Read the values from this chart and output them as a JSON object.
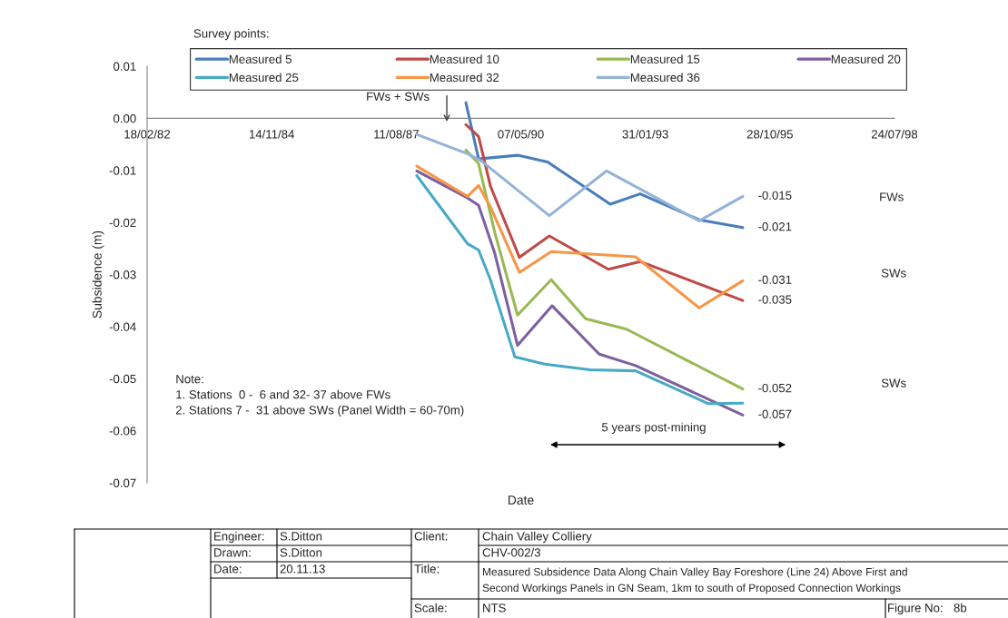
{
  "chart_data": {
    "type": "line",
    "title": "Measured Subsidence Data Along Chain Valley Bay Foreshore (Line 24) Above First and\nSecond Workings Panels in GN Seam, 1km to south of Proposed Connection Workings",
    "xlabel": "Date",
    "ylabel": "Subsidence (m)",
    "legend_title": "Survey points:",
    "xlim": [
      "1982-02-18",
      "1998-07-24"
    ],
    "xticks": [
      {
        "value": "1982-02-18",
        "label": "18/02/82"
      },
      {
        "value": "1984-11-14",
        "label": "14/11/84"
      },
      {
        "value": "1987-08-11",
        "label": "11/08/87"
      },
      {
        "value": "1990-05-07",
        "label": "07/05/90"
      },
      {
        "value": "1993-01-31",
        "label": "31/01/93"
      },
      {
        "value": "1995-10-28",
        "label": "28/10/95"
      },
      {
        "value": "1998-07-24",
        "label": "24/07/98"
      }
    ],
    "ylim": [
      -0.07,
      0.01
    ],
    "yticks": [
      {
        "value": 0.01,
        "label": "0.01"
      },
      {
        "value": 0.0,
        "label": "0.00"
      },
      {
        "value": -0.01,
        "label": "-0.01"
      },
      {
        "value": -0.02,
        "label": "-0.02"
      },
      {
        "value": -0.03,
        "label": "-0.03"
      },
      {
        "value": -0.04,
        "label": "-0.04"
      },
      {
        "value": -0.05,
        "label": "-0.05"
      },
      {
        "value": -0.06,
        "label": "-0.06"
      },
      {
        "value": -0.07,
        "label": "-0.07"
      }
    ],
    "legend": "top",
    "grid": false,
    "line_style": "solid",
    "series": [
      {
        "name": "Measured 5",
        "color": "#4a7ebb",
        "x": [
          "1989-02-20",
          "1989-06-02",
          "1990-04-11",
          "1990-12-08",
          "1992-04-24",
          "1992-12-20",
          "1994-04-08",
          "1995-03-24"
        ],
        "values": [
          0.003,
          -0.0078,
          -0.0071,
          -0.0084,
          -0.0165,
          -0.0145,
          -0.0195,
          -0.021
        ],
        "value_labels": [
          null,
          null,
          null,
          null,
          null,
          null,
          null,
          "-0.021"
        ]
      },
      {
        "name": "Measured 10",
        "color": "#be4b48",
        "x": [
          "1989-02-20",
          "1989-06-02",
          "1989-09-05",
          "1990-04-26",
          "1990-12-22",
          "1992-04-09",
          "1992-12-20",
          "1995-03-24"
        ],
        "values": [
          -0.0012,
          -0.0035,
          -0.013,
          -0.0267,
          -0.0226,
          -0.029,
          -0.0275,
          -0.035
        ],
        "value_labels": [
          null,
          null,
          null,
          null,
          null,
          null,
          null,
          "-0.035"
        ]
      },
      {
        "name": "Measured 15",
        "color": "#98b954",
        "x": [
          "1989-02-20",
          "1989-06-02",
          "1989-10-11",
          "1990-04-11",
          "1991-01-06",
          "1991-10-10",
          "1992-09-02",
          "1995-03-24"
        ],
        "values": [
          -0.0061,
          -0.0087,
          -0.022,
          -0.0378,
          -0.031,
          -0.0385,
          -0.0405,
          -0.052
        ],
        "value_labels": [
          null,
          null,
          null,
          null,
          null,
          null,
          null,
          "-0.052"
        ]
      },
      {
        "name": "Measured 20",
        "color": "#7d60a0",
        "x": [
          "1988-01-23",
          "1989-03-06",
          "1989-06-02",
          "1989-10-11",
          "1990-04-11",
          "1991-01-13",
          "1992-01-27",
          "1992-11-14",
          "1995-03-24"
        ],
        "values": [
          -0.0101,
          -0.0153,
          -0.0167,
          -0.026,
          -0.0436,
          -0.036,
          -0.0453,
          -0.0475,
          -0.057
        ],
        "value_labels": [
          null,
          null,
          null,
          null,
          null,
          null,
          null,
          null,
          "-0.057"
        ]
      },
      {
        "name": "Measured 25",
        "color": "#46aac5",
        "x": [
          "1988-01-23",
          "1989-03-06",
          "1989-06-02",
          "1989-09-05",
          "1990-03-20",
          "1990-11-16",
          "1991-11-16",
          "1992-11-14",
          "1994-06-20",
          "1995-03-24"
        ],
        "values": [
          -0.011,
          -0.0241,
          -0.0253,
          -0.031,
          -0.0458,
          -0.0472,
          -0.0483,
          -0.0485,
          -0.0548,
          -0.0547
        ]
      },
      {
        "name": "Measured 32",
        "color": "#f79646",
        "x": [
          "1988-01-23",
          "1989-03-06",
          "1989-06-02",
          "1989-09-05",
          "1990-04-26",
          "1991-01-06",
          "1992-11-14",
          "1994-04-08",
          "1995-03-24"
        ],
        "values": [
          -0.0092,
          -0.015,
          -0.0129,
          -0.017,
          -0.0296,
          -0.0256,
          -0.0266,
          -0.0364,
          -0.0312
        ],
        "value_labels": [
          null,
          null,
          null,
          null,
          null,
          null,
          null,
          null,
          "-0.031"
        ]
      },
      {
        "name": "Measured 36",
        "color": "#95b3d7",
        "x": [
          "1988-01-23",
          "1989-03-06",
          "1989-06-24",
          "1990-12-22",
          "1992-03-26",
          "1994-04-08",
          "1995-03-24"
        ],
        "values": [
          -0.0031,
          -0.0068,
          -0.0082,
          -0.0187,
          -0.0101,
          -0.0197,
          -0.015
        ],
        "value_labels": [
          null,
          null,
          null,
          null,
          null,
          null,
          "-0.015"
        ]
      }
    ],
    "annotations": [
      "FWs + SWs",
      "FWs",
      "SWs",
      "SWs",
      "5 years post-mining",
      "Note:\n1. Stations  0 -  6 and 32- 37 above FWs\n2. Stations 7 -  31 above SWs (Panel Width = 60-70m)",
      "Engineer:",
      "S.Ditton",
      "Drawn:",
      "S.Ditton",
      "Date:",
      "20.11.13",
      "Client:",
      "Chain Valley Colliery",
      "CHV-002/3",
      "Title:",
      "Scale:",
      "NTS",
      "Figure No:",
      "8b"
    ]
  }
}
